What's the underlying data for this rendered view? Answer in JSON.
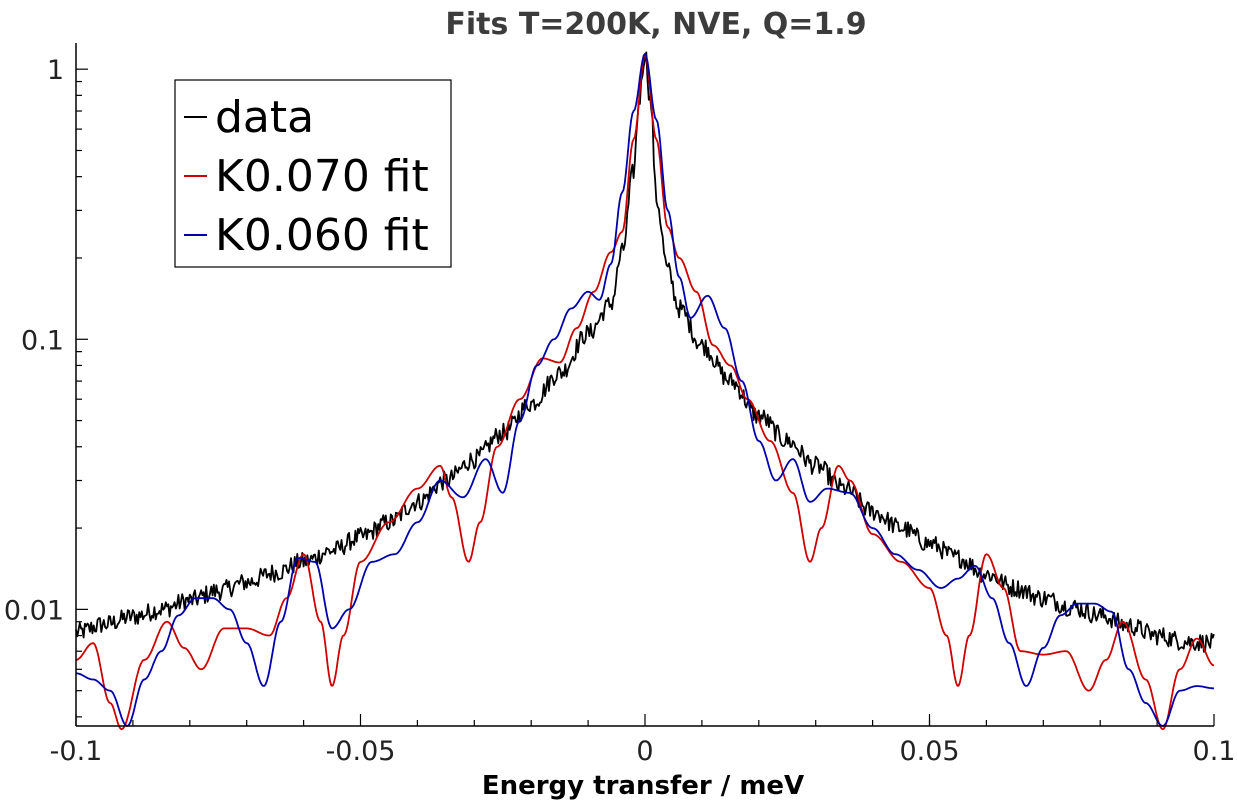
{
  "chart_data": {
    "type": "line",
    "title": "Fits T=200K, NVE, Q=1.9",
    "xlabel": "Energy transfer / meV",
    "ylabel": "",
    "xlim": [
      -0.1,
      0.1
    ],
    "ylim": [
      0.0037,
      1.25
    ],
    "yscale": "log",
    "grid": false,
    "legend_position": "top-left",
    "x_ticks": [
      {
        "value": -0.1,
        "label": "-0.1"
      },
      {
        "value": -0.05,
        "label": "-0.05"
      },
      {
        "value": 0,
        "label": "0"
      },
      {
        "value": 0.05,
        "label": "0.05"
      },
      {
        "value": 0.1,
        "label": "0.1"
      }
    ],
    "y_ticks": [
      {
        "value": 1,
        "label": "1"
      },
      {
        "value": 0.1,
        "label": "0.1"
      },
      {
        "value": 0.01,
        "label": "0.01"
      }
    ],
    "series": [
      {
        "name": "data",
        "color": "#000000",
        "x": [
          -0.1,
          -0.095,
          -0.09,
          -0.085,
          -0.08,
          -0.075,
          -0.07,
          -0.065,
          -0.06,
          -0.055,
          -0.05,
          -0.045,
          -0.04,
          -0.035,
          -0.03,
          -0.025,
          -0.02,
          -0.015,
          -0.01,
          -0.006,
          -0.004,
          -0.002,
          -0.001,
          0,
          0.001,
          0.002,
          0.004,
          0.006,
          0.01,
          0.015,
          0.02,
          0.025,
          0.03,
          0.035,
          0.04,
          0.045,
          0.05,
          0.055,
          0.06,
          0.065,
          0.07,
          0.075,
          0.08,
          0.085,
          0.09,
          0.095,
          0.1
        ],
        "y": [
          0.0082,
          0.0088,
          0.0094,
          0.01,
          0.0108,
          0.0117,
          0.0126,
          0.0137,
          0.015,
          0.0165,
          0.0185,
          0.021,
          0.025,
          0.03,
          0.036,
          0.045,
          0.058,
          0.075,
          0.105,
          0.135,
          0.21,
          0.42,
          0.78,
          1.15,
          0.75,
          0.33,
          0.18,
          0.13,
          0.095,
          0.07,
          0.052,
          0.042,
          0.034,
          0.028,
          0.023,
          0.02,
          0.0175,
          0.0155,
          0.0135,
          0.012,
          0.011,
          0.0102,
          0.0095,
          0.0087,
          0.008,
          0.0076,
          0.0075
        ]
      },
      {
        "name": "K0.070 fit",
        "color": "#cc0000",
        "x": [
          -0.1,
          -0.097,
          -0.094,
          -0.092,
          -0.088,
          -0.084,
          -0.081,
          -0.078,
          -0.074,
          -0.07,
          -0.066,
          -0.063,
          -0.06,
          -0.057,
          -0.055,
          -0.053,
          -0.05,
          -0.045,
          -0.04,
          -0.036,
          -0.034,
          -0.031,
          -0.029,
          -0.026,
          -0.022,
          -0.018,
          -0.015,
          -0.012,
          -0.009,
          -0.006,
          -0.004,
          -0.002,
          0,
          0.002,
          0.004,
          0.006,
          0.009,
          0.012,
          0.015,
          0.018,
          0.022,
          0.026,
          0.029,
          0.031,
          0.034,
          0.036,
          0.04,
          0.045,
          0.05,
          0.053,
          0.055,
          0.057,
          0.06,
          0.063,
          0.066,
          0.07,
          0.074,
          0.078,
          0.081,
          0.084,
          0.088,
          0.091,
          0.094,
          0.097,
          0.1
        ],
        "y": [
          0.0065,
          0.0075,
          0.0045,
          0.0036,
          0.0065,
          0.009,
          0.0072,
          0.006,
          0.0085,
          0.0085,
          0.008,
          0.011,
          0.016,
          0.009,
          0.0052,
          0.008,
          0.015,
          0.021,
          0.028,
          0.034,
          0.026,
          0.015,
          0.021,
          0.04,
          0.06,
          0.085,
          0.082,
          0.11,
          0.15,
          0.21,
          0.25,
          0.55,
          1.13,
          0.55,
          0.26,
          0.2,
          0.15,
          0.095,
          0.08,
          0.06,
          0.042,
          0.027,
          0.015,
          0.02,
          0.034,
          0.03,
          0.019,
          0.015,
          0.012,
          0.008,
          0.0052,
          0.008,
          0.016,
          0.012,
          0.007,
          0.0068,
          0.007,
          0.005,
          0.0065,
          0.009,
          0.0055,
          0.0036,
          0.006,
          0.0078,
          0.0062
        ]
      },
      {
        "name": "K0.060 fit",
        "color": "#0000aa",
        "x": [
          -0.1,
          -0.097,
          -0.094,
          -0.091,
          -0.088,
          -0.085,
          -0.082,
          -0.079,
          -0.076,
          -0.073,
          -0.07,
          -0.067,
          -0.064,
          -0.061,
          -0.058,
          -0.055,
          -0.052,
          -0.048,
          -0.044,
          -0.04,
          -0.036,
          -0.032,
          -0.028,
          -0.025,
          -0.022,
          -0.019,
          -0.016,
          -0.013,
          -0.01,
          -0.008,
          -0.006,
          -0.004,
          -0.002,
          0,
          0.002,
          0.004,
          0.006,
          0.008,
          0.011,
          0.014,
          0.017,
          0.02,
          0.023,
          0.026,
          0.029,
          0.032,
          0.036,
          0.04,
          0.044,
          0.048,
          0.052,
          0.055,
          0.058,
          0.061,
          0.064,
          0.067,
          0.07,
          0.073,
          0.076,
          0.079,
          0.082,
          0.085,
          0.088,
          0.091,
          0.094,
          0.097,
          0.1
        ],
        "y": [
          0.0058,
          0.0055,
          0.005,
          0.0037,
          0.0055,
          0.007,
          0.0095,
          0.011,
          0.011,
          0.01,
          0.0075,
          0.0052,
          0.009,
          0.0155,
          0.015,
          0.0085,
          0.01,
          0.015,
          0.016,
          0.021,
          0.03,
          0.026,
          0.036,
          0.027,
          0.05,
          0.08,
          0.1,
          0.13,
          0.15,
          0.14,
          0.19,
          0.35,
          0.7,
          1.14,
          0.65,
          0.3,
          0.17,
          0.12,
          0.145,
          0.11,
          0.07,
          0.042,
          0.03,
          0.036,
          0.025,
          0.028,
          0.027,
          0.02,
          0.016,
          0.014,
          0.012,
          0.013,
          0.0145,
          0.011,
          0.0075,
          0.0052,
          0.0072,
          0.0095,
          0.0105,
          0.0105,
          0.0098,
          0.006,
          0.0045,
          0.0037,
          0.005,
          0.0052,
          0.0051
        ]
      }
    ]
  }
}
